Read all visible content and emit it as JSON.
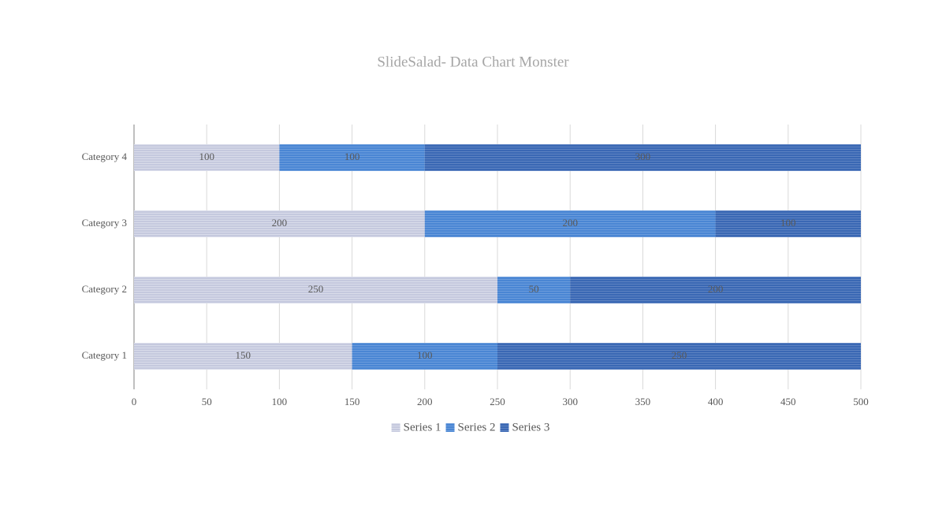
{
  "chart_data": {
    "type": "stacked-bar-horizontal",
    "title": "SlideSalad- Data Chart Monster",
    "categories": [
      "Category 1",
      "Category 2",
      "Category 3",
      "Category 4"
    ],
    "series": [
      {
        "name": "Series 1",
        "color": "#c5c9de",
        "values": [
          150,
          250,
          200,
          100
        ]
      },
      {
        "name": "Series 2",
        "color": "#4a86d4",
        "values": [
          100,
          50,
          200,
          100
        ]
      },
      {
        "name": "Series 3",
        "color": "#3a68b4",
        "values": [
          250,
          200,
          100,
          300
        ]
      }
    ],
    "xlim": [
      0,
      500
    ],
    "xticks": [
      0,
      50,
      100,
      150,
      200,
      250,
      300,
      350,
      400,
      450,
      500
    ],
    "grid": true,
    "legend": "bottom"
  }
}
